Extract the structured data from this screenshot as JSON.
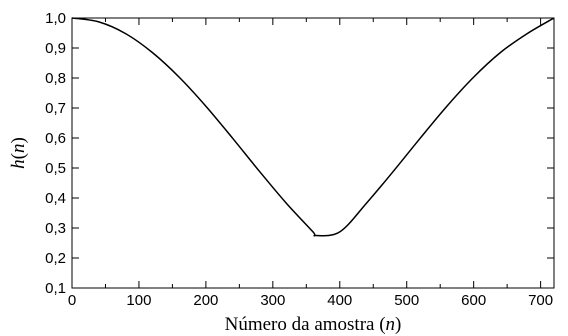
{
  "chart_data": {
    "type": "line",
    "title": "",
    "xlabel": "Número da amostra (n)",
    "xlabel_parts": {
      "text": "Número da amostra (",
      "var": "n",
      "close": ")"
    },
    "ylabel": "h(n)",
    "ylabel_parts": {
      "text": "h",
      "open": "(",
      "var": "n",
      "close": ")"
    },
    "xlim": [
      0,
      720
    ],
    "ylim": [
      0.1,
      1.0
    ],
    "x_ticks": [
      0,
      100,
      200,
      300,
      400,
      500,
      600,
      700
    ],
    "x_tick_labels": [
      "0",
      "100",
      "200",
      "300",
      "400",
      "500",
      "600",
      "700"
    ],
    "y_ticks": [
      0.1,
      0.2,
      0.3,
      0.4,
      0.5,
      0.6,
      0.7,
      0.8,
      0.9,
      1.0
    ],
    "y_tick_labels": [
      "0,1",
      "0,2",
      "0,3",
      "0,4",
      "0,5",
      "0,6",
      "0,7",
      "0,8",
      "0,9",
      "1,0"
    ],
    "grid": false,
    "legend": "none",
    "line_color": "#000000",
    "series": [
      {
        "x": [
          0,
          40,
          80,
          120,
          160,
          200,
          240,
          280,
          320,
          360,
          364,
          400,
          440,
          480,
          520,
          560,
          600,
          640,
          680,
          720
        ],
        "y": [
          1.0,
          0.987,
          0.948,
          0.885,
          0.803,
          0.706,
          0.599,
          0.489,
          0.383,
          0.287,
          0.275,
          0.287,
          0.383,
          0.489,
          0.599,
          0.706,
          0.803,
          0.885,
          0.948,
          1.0
        ]
      }
    ]
  }
}
